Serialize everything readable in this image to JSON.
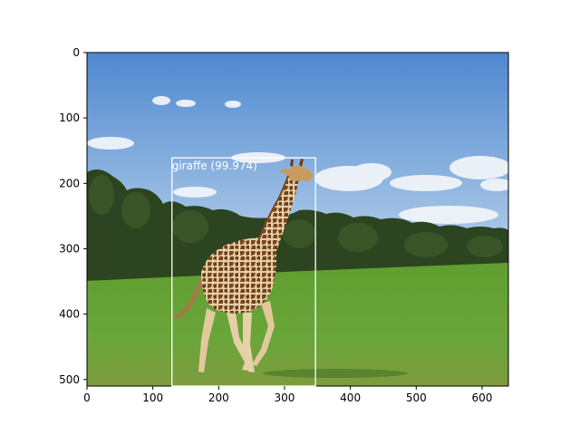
{
  "figure": {
    "xticks": [
      "0",
      "100",
      "200",
      "300",
      "400",
      "500",
      "600"
    ],
    "yticks": [
      "0",
      "100",
      "200",
      "300",
      "400",
      "500"
    ]
  },
  "detection": {
    "label": "giraffe (99.974)",
    "class_name": "giraffe",
    "score": 99.974,
    "box_image_coords": [
      129,
      161,
      347,
      510
    ],
    "box_color": "#ffffff"
  },
  "image_axes": {
    "x_range": [
      0,
      640
    ],
    "y_range": [
      0,
      510
    ],
    "y_inverted": true
  },
  "scene": {
    "sky_top_color": "#5a8fd4",
    "sky_bottom_color": "#b8d0e8",
    "tree_color": "#2f4a22",
    "grass_color": "#5f9a34",
    "giraffe_color": "#c89a5e",
    "giraffe_patch_color": "#6b3e1e"
  }
}
